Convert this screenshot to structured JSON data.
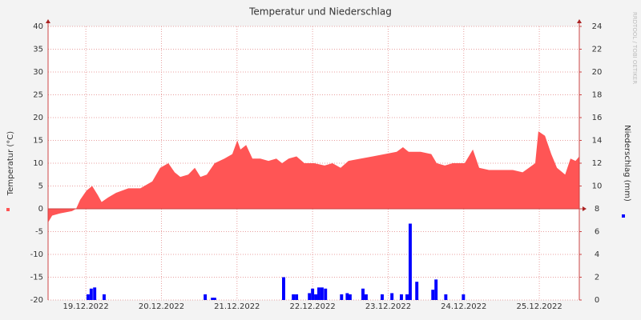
{
  "chart_data": {
    "type": "combo",
    "title": "Temperatur und Niederschlag",
    "ylabel": "Temperatur (°C)",
    "y2label": "Niederschlag (mm)",
    "watermark": "RRDTOOL / TOBI OETIKER",
    "xlim": [
      0,
      168.7
    ],
    "xticks": [
      {
        "value": 12,
        "label": "19.12.2022"
      },
      {
        "value": 36,
        "label": "20.12.2022"
      },
      {
        "value": 60,
        "label": "21.12.2022"
      },
      {
        "value": 84,
        "label": "22.12.2022"
      },
      {
        "value": 108,
        "label": "23.12.2022"
      },
      {
        "value": 132,
        "label": "24.12.2022"
      },
      {
        "value": 156,
        "label": "25.12.2022"
      }
    ],
    "ylim": [
      -20,
      40
    ],
    "yticks": [
      -20,
      -15,
      -10,
      -5,
      0,
      5,
      10,
      15,
      20,
      25,
      30,
      35,
      40
    ],
    "y2lim": [
      0,
      24
    ],
    "y2ticks": [
      0,
      2,
      4,
      6,
      8,
      10,
      12,
      14,
      16,
      18,
      20,
      22,
      24
    ],
    "grid": true,
    "series": [
      {
        "type": "area",
        "color": "#ff5555",
        "x": [
          0,
          1.3,
          3.8,
          7.6,
          8.9,
          10.2,
          12.2,
          14,
          15.8,
          17,
          19.1,
          21.6,
          25.5,
          29.3,
          33.1,
          35.6,
          38.2,
          40.2,
          42,
          44.5,
          46.6,
          48.4,
          50.4,
          52.9,
          56,
          58.5,
          60.1,
          61.1,
          62.9,
          64.9,
          67.4,
          70,
          72.5,
          74.3,
          76.4,
          78.9,
          81.4,
          84.5,
          87.8,
          90.3,
          92.9,
          95.4,
          99.3,
          103.1,
          106.9,
          110.7,
          112.7,
          114.5,
          118.3,
          121.7,
          123.4,
          126,
          128.5,
          132.3,
          134.9,
          136.9,
          140,
          143.8,
          147.6,
          150.7,
          152.7,
          154.7,
          155.7,
          157.8,
          159.8,
          161.6,
          164.2,
          165.9,
          167.5,
          168.7
        ],
        "y": [
          -3,
          -1.5,
          -1,
          -0.5,
          0,
          2,
          4,
          5,
          3,
          1.5,
          2.5,
          3.5,
          4.5,
          4.5,
          6,
          9,
          10,
          8,
          7,
          7.5,
          9,
          7,
          7.5,
          10,
          11,
          12,
          15,
          13,
          14,
          11,
          11,
          10.5,
          11,
          10,
          11,
          11.5,
          10,
          10,
          9.5,
          10,
          9,
          10.5,
          11,
          11.5,
          12,
          12.5,
          13.5,
          12.5,
          12.5,
          12,
          10,
          9.5,
          10,
          10,
          13,
          9,
          8.5,
          8.5,
          8.5,
          8,
          9,
          10,
          17,
          16,
          12,
          9,
          7.5,
          11,
          10.5,
          11.5
        ]
      },
      {
        "type": "bar",
        "axis": "y2",
        "color": "#0000ff",
        "x": [
          12.7,
          13.7,
          14.8,
          17.8,
          49.9,
          52.2,
          52.9,
          74.8,
          77.9,
          78.9,
          83,
          84,
          85,
          86,
          87,
          88.1,
          93.2,
          95,
          95.9,
          100,
          101,
          106.1,
          109.2,
          112.2,
          114,
          115,
          117.1,
          122.2,
          123.2,
          126.3,
          131.9
        ],
        "y": [
          0.5,
          1,
          1.1,
          0.5,
          0.5,
          0.2,
          0.2,
          2,
          0.5,
          0.5,
          0.6,
          1,
          0.5,
          1.1,
          1.1,
          1,
          0.5,
          0.6,
          0.5,
          1,
          0.5,
          0.5,
          0.6,
          0.5,
          0.5,
          6.7,
          1.6,
          0.9,
          1.8,
          0.5,
          0.5
        ]
      }
    ]
  }
}
